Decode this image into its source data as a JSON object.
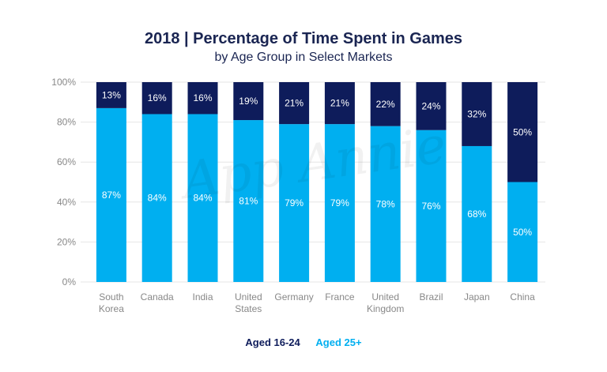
{
  "title": "2018 | Percentage of Time Spent in Games",
  "subtitle": "by Age Group in Select Markets",
  "watermark": "App Annie",
  "colors": {
    "young": "#0e1c5b",
    "old": "#00aff0",
    "axis_text": "#888888",
    "grid": "#e6e6e6"
  },
  "legend": [
    {
      "label": "Aged 16-24",
      "color": "#0e1c5b"
    },
    {
      "label": "Aged 25+",
      "color": "#00aff0"
    }
  ],
  "chart_data": {
    "type": "bar",
    "stacked": true,
    "categories": [
      "South Korea",
      "Canada",
      "India",
      "United States",
      "Germany",
      "France",
      "United Kingdom",
      "Brazil",
      "Japan",
      "China"
    ],
    "category_lines": [
      [
        "South",
        "Korea"
      ],
      [
        "Canada"
      ],
      [
        "India"
      ],
      [
        "United",
        "States"
      ],
      [
        "Germany"
      ],
      [
        "France"
      ],
      [
        "United",
        "Kingdom"
      ],
      [
        "Brazil"
      ],
      [
        "Japan"
      ],
      [
        "China"
      ]
    ],
    "series": [
      {
        "name": "Aged 25+",
        "values": [
          87,
          84,
          84,
          81,
          79,
          79,
          78,
          76,
          68,
          50
        ]
      },
      {
        "name": "Aged 16-24",
        "values": [
          13,
          16,
          16,
          19,
          21,
          21,
          22,
          24,
          32,
          50
        ]
      }
    ],
    "ylim": [
      0,
      100
    ],
    "yticks": [
      "0%",
      "20%",
      "40%",
      "60%",
      "80%",
      "100%"
    ],
    "value_suffix": "%",
    "grid": true,
    "legend_position": "bottom"
  }
}
